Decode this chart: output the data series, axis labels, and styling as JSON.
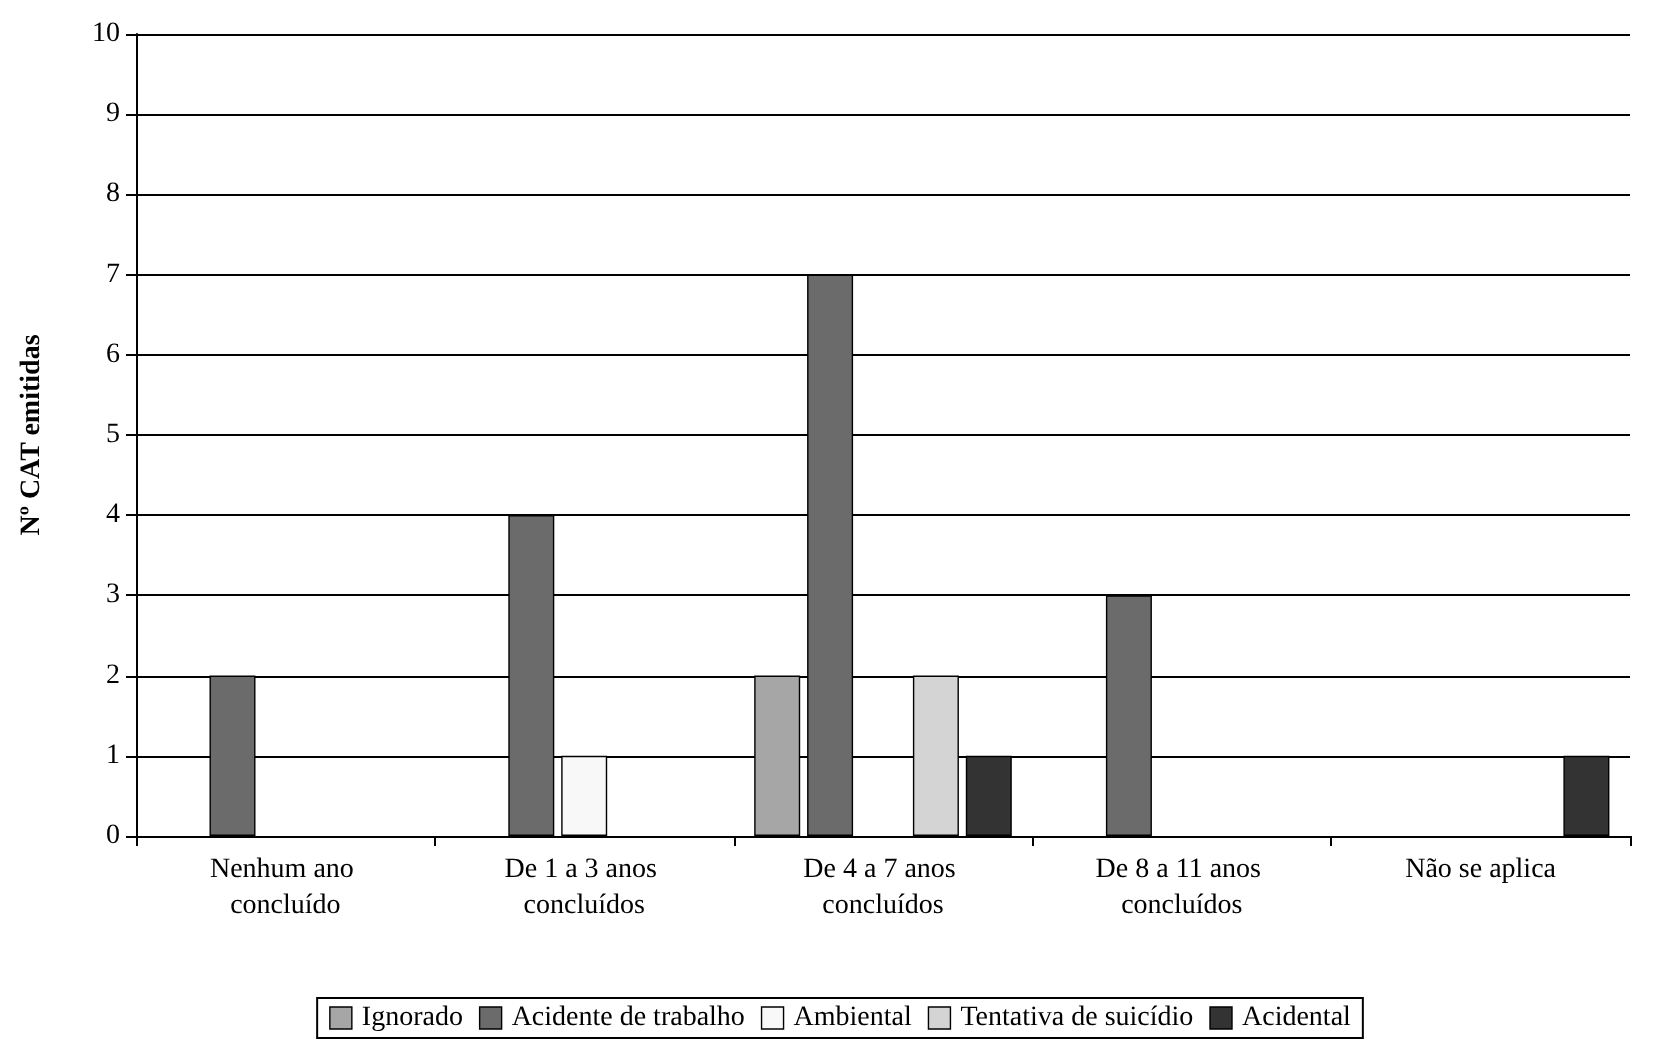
{
  "chart_data": {
    "type": "bar",
    "ylabel": "Nº CAT emitidas",
    "categories": [
      "Nenhum ano concluído",
      "De 1 a 3 anos concluídos",
      "De 4 a 7 anos concluídos",
      "De 8 a 11 anos concluídos",
      "Não se aplica"
    ],
    "series": [
      {
        "name": "Ignorado",
        "color": "#a6a6a6",
        "values": [
          null,
          null,
          2,
          null,
          null
        ]
      },
      {
        "name": "Acidente de trabalho",
        "color": "#6b6b6b",
        "values": [
          2,
          4,
          7,
          3,
          null
        ]
      },
      {
        "name": "Ambiental",
        "color": "#f8f8f8",
        "values": [
          null,
          1,
          null,
          null,
          null
        ]
      },
      {
        "name": "Tentativa de suicídio",
        "color": "#d4d4d4",
        "values": [
          null,
          null,
          2,
          null,
          null
        ]
      },
      {
        "name": "Acidental",
        "color": "#333333",
        "values": [
          null,
          null,
          1,
          null,
          1
        ]
      }
    ],
    "ylim": [
      0,
      10
    ],
    "yticks": [
      0,
      1,
      2,
      3,
      4,
      5,
      6,
      7,
      8,
      9,
      10
    ],
    "grid": "y",
    "legend": "bottom"
  }
}
